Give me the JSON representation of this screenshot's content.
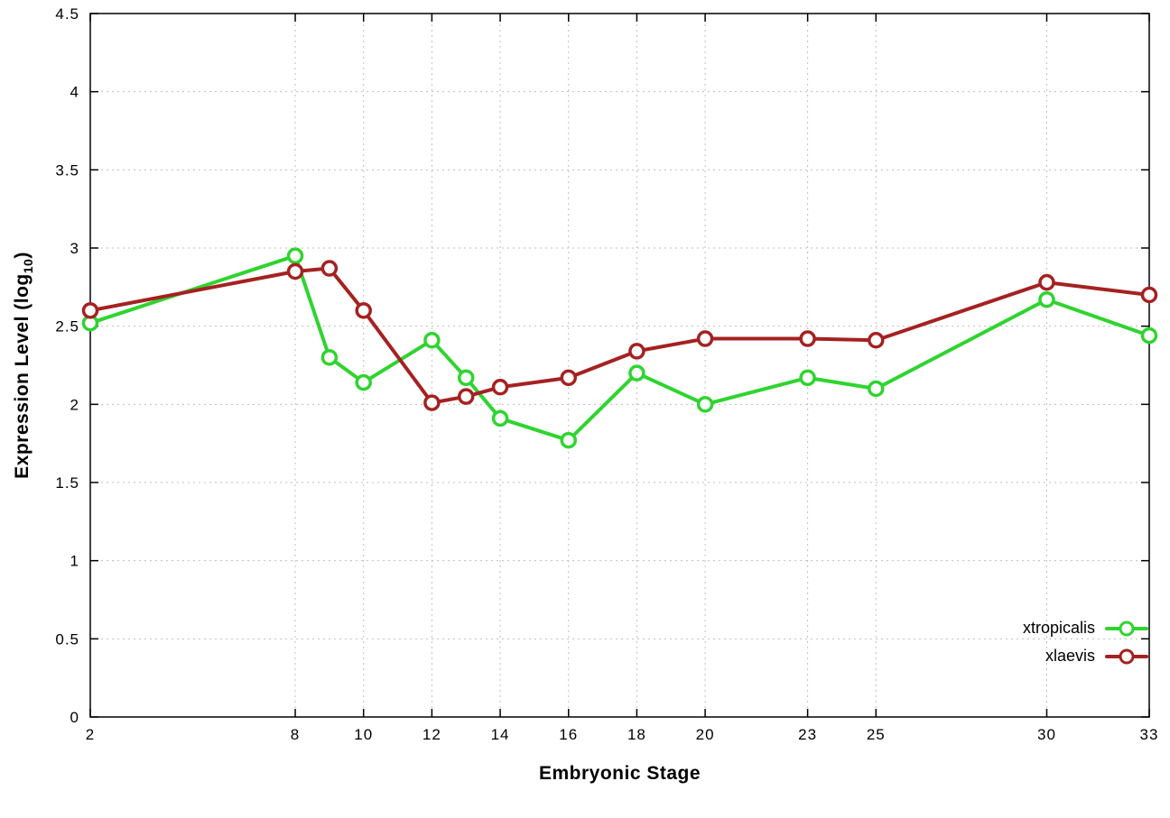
{
  "chart_data": {
    "type": "line",
    "title": "",
    "xlabel": "Embryonic Stage",
    "ylabel": "Expression Level (log10)",
    "xlim": [
      2,
      33
    ],
    "ylim": [
      0,
      4.5
    ],
    "x_ticks": [
      2,
      8,
      10,
      12,
      14,
      16,
      18,
      20,
      23,
      25,
      30,
      33
    ],
    "y_ticks": [
      0,
      0.5,
      1,
      1.5,
      2,
      2.5,
      3,
      3.5,
      4,
      4.5
    ],
    "grid": true,
    "legend_position": "bottom-right",
    "marker": "open-circle",
    "x": [
      2,
      8,
      9,
      10,
      12,
      13,
      14,
      16,
      18,
      20,
      23,
      25,
      30,
      33
    ],
    "series": [
      {
        "name": "xtropicalis",
        "color": "#2fd42f",
        "values": [
          2.52,
          2.95,
          2.3,
          2.14,
          2.41,
          2.17,
          1.91,
          1.77,
          2.2,
          2.0,
          2.17,
          2.1,
          2.67,
          2.44
        ]
      },
      {
        "name": "xlaevis",
        "color": "#a52121",
        "values": [
          2.6,
          2.85,
          2.87,
          2.6,
          2.01,
          2.05,
          2.11,
          2.17,
          2.34,
          2.42,
          2.42,
          2.41,
          2.78,
          2.7
        ]
      }
    ]
  },
  "labels": {
    "y_main": "Expression Level (log",
    "y_sub": "10",
    "y_close": ")",
    "x": "Embryonic Stage"
  }
}
